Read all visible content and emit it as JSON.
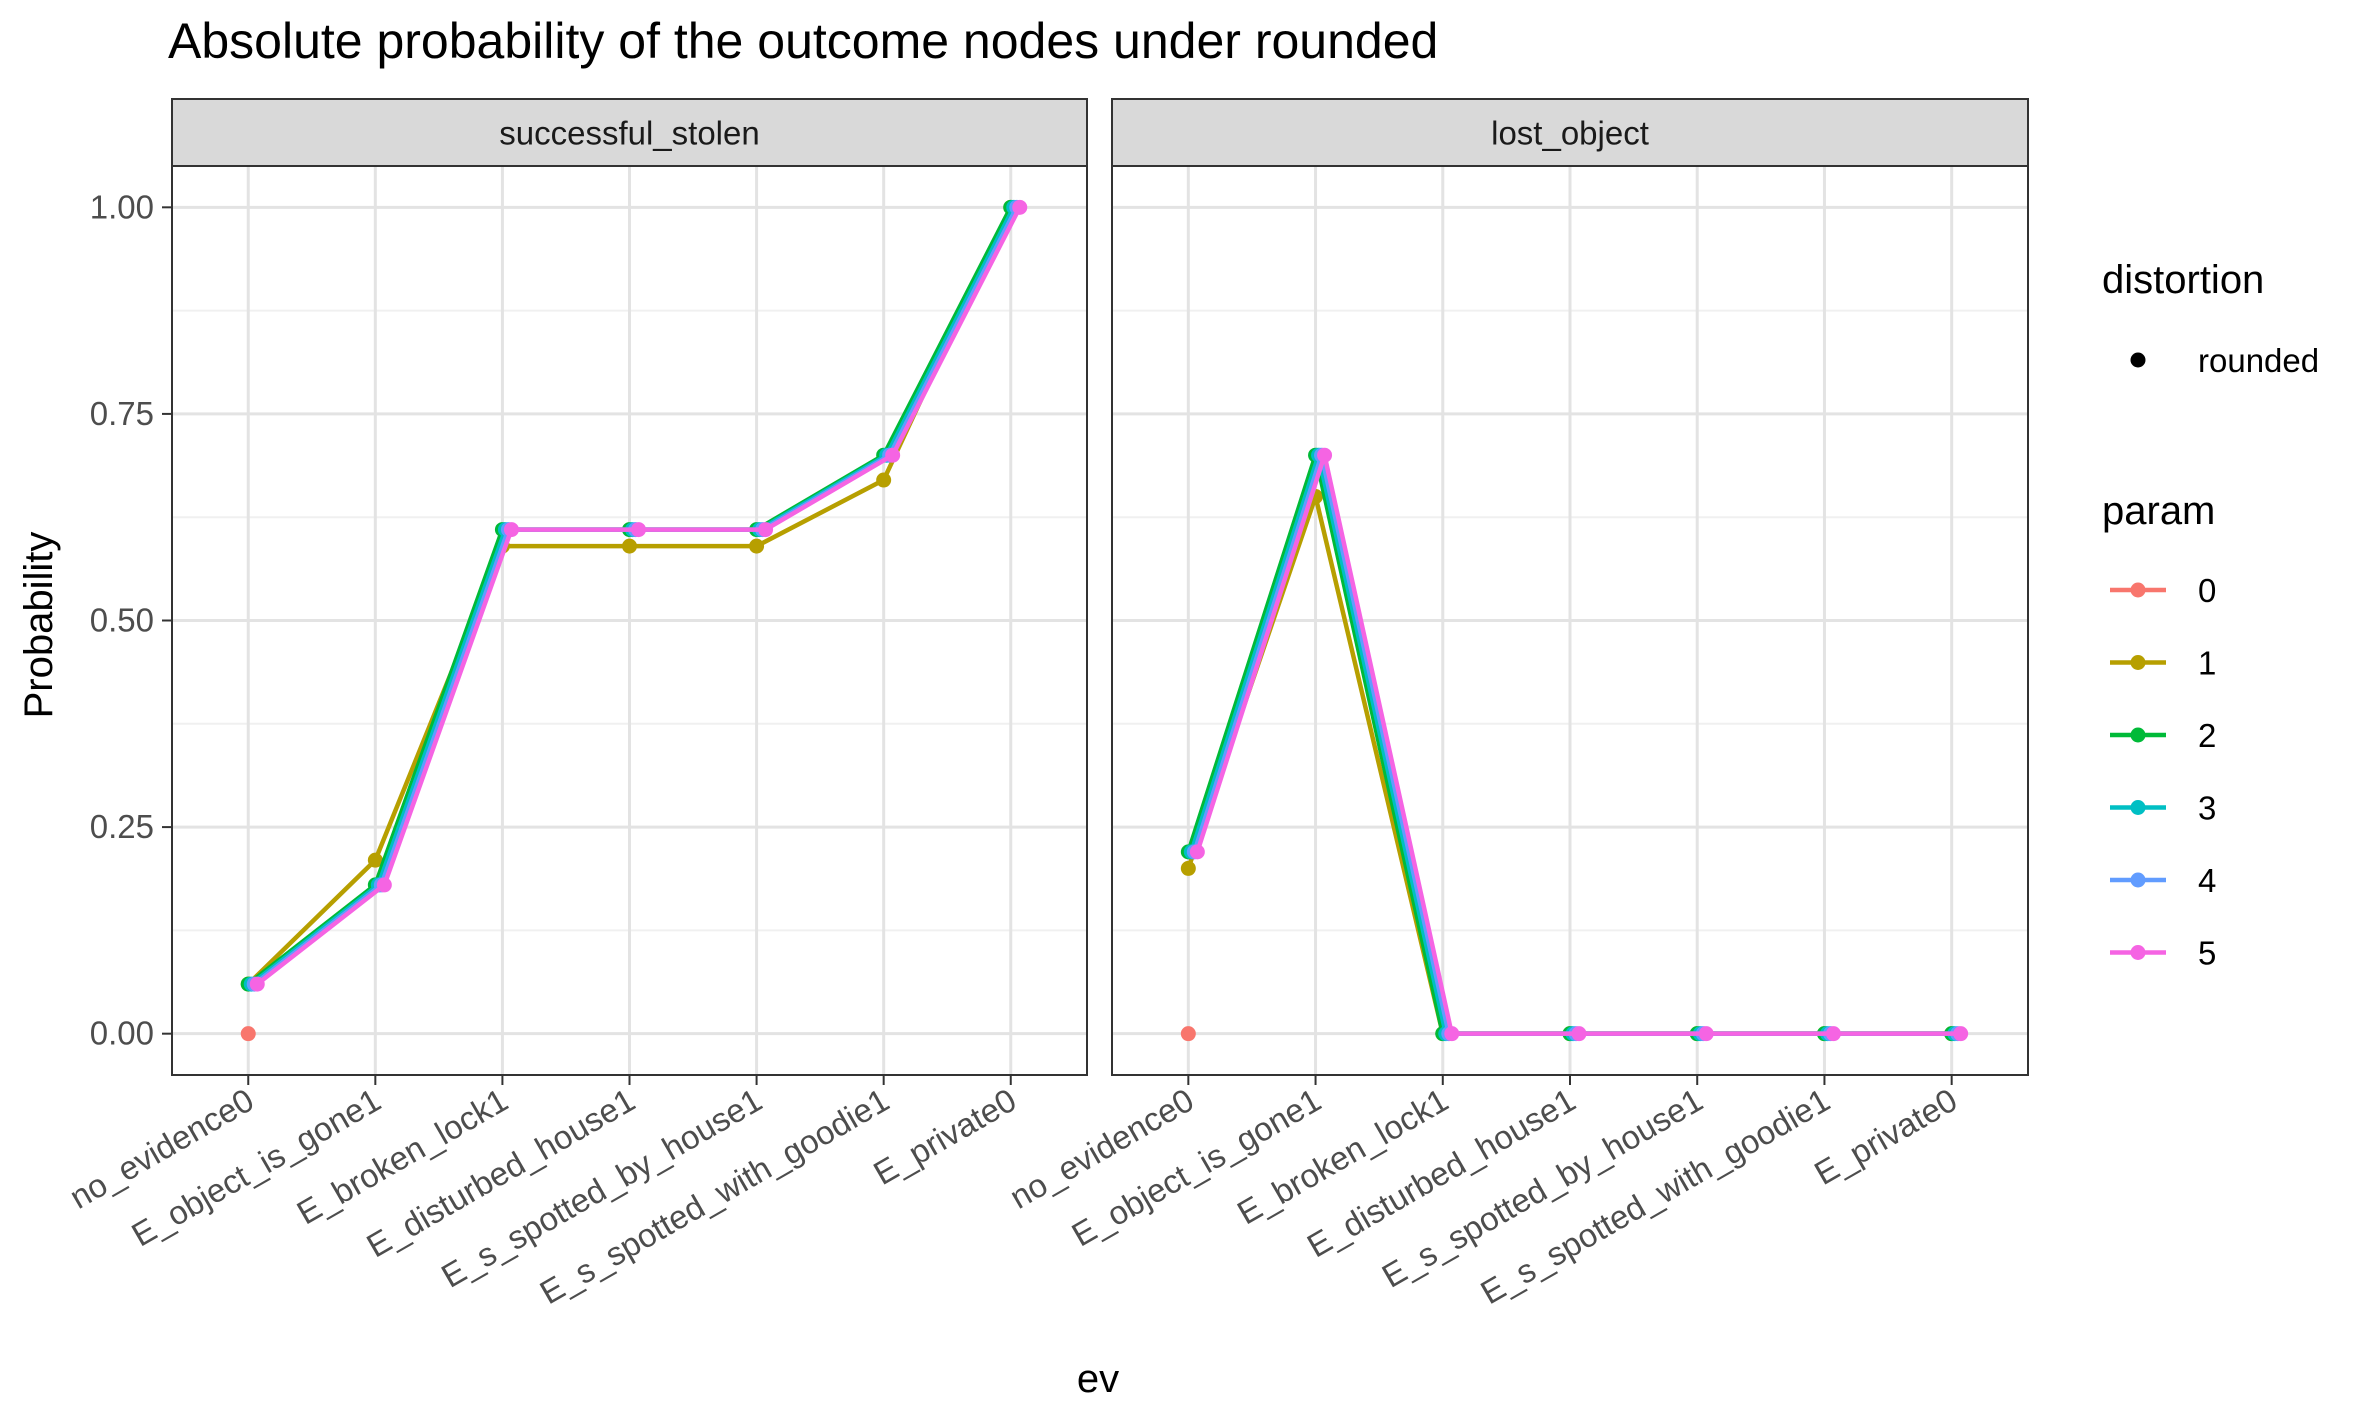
{
  "chart_data": {
    "type": "line",
    "title": "Absolute probability of the outcome nodes under rounded",
    "xlabel": "ev",
    "ylabel": "Probability",
    "ylim": [
      -0.05,
      1.05
    ],
    "y_ticks": [
      "0.00",
      "0.25",
      "0.50",
      "0.75",
      "1.00"
    ],
    "y_tick_values": [
      0,
      0.25,
      0.5,
      0.75,
      1.0
    ],
    "categories": [
      "no_evidence0",
      "E_object_is_gone1",
      "E_broken_lock1",
      "E_disturbed_house1",
      "E_s_spotted_by_house1",
      "E_s_spotted_with_goodie1",
      "E_private0"
    ],
    "grid": true,
    "legend_placement": "right",
    "legends": [
      {
        "title": "distortion",
        "entries": [
          {
            "label": "rounded"
          }
        ]
      },
      {
        "title": "param",
        "entries": [
          {
            "label": "0",
            "color": "#F8766D"
          },
          {
            "label": "1",
            "color": "#B79F00"
          },
          {
            "label": "2",
            "color": "#00BA38"
          },
          {
            "label": "3",
            "color": "#00BFC4"
          },
          {
            "label": "4",
            "color": "#619CFF"
          },
          {
            "label": "5",
            "color": "#F564E3"
          }
        ]
      }
    ],
    "panels": [
      {
        "strip": "successful_stolen",
        "series": [
          {
            "param": "0",
            "color": "#F8766D",
            "values": [
              0.0,
              null,
              null,
              null,
              null,
              null,
              null
            ]
          },
          {
            "param": "1",
            "color": "#B79F00",
            "values": [
              0.06,
              0.21,
              0.59,
              0.59,
              0.59,
              0.67,
              1.0
            ]
          },
          {
            "param": "2",
            "color": "#00BA38",
            "values": [
              0.06,
              0.18,
              0.61,
              0.61,
              0.61,
              0.7,
              1.0
            ]
          },
          {
            "param": "3",
            "color": "#00BFC4",
            "values": [
              0.06,
              0.18,
              0.61,
              0.61,
              0.61,
              0.7,
              1.0
            ]
          },
          {
            "param": "4",
            "color": "#619CFF",
            "values": [
              0.06,
              0.18,
              0.61,
              0.61,
              0.61,
              0.7,
              1.0
            ]
          },
          {
            "param": "5",
            "color": "#F564E3",
            "values": [
              0.06,
              0.18,
              0.61,
              0.61,
              0.61,
              0.7,
              1.0
            ]
          }
        ]
      },
      {
        "strip": "lost_object",
        "series": [
          {
            "param": "0",
            "color": "#F8766D",
            "values": [
              0.0,
              null,
              null,
              null,
              null,
              null,
              null
            ]
          },
          {
            "param": "1",
            "color": "#B79F00",
            "values": [
              0.2,
              0.65,
              0.0,
              0.0,
              0.0,
              0.0,
              0.0
            ]
          },
          {
            "param": "2",
            "color": "#00BA38",
            "values": [
              0.22,
              0.7,
              0.0,
              0.0,
              0.0,
              0.0,
              0.0
            ]
          },
          {
            "param": "3",
            "color": "#00BFC4",
            "values": [
              0.22,
              0.7,
              0.0,
              0.0,
              0.0,
              0.0,
              0.0
            ]
          },
          {
            "param": "4",
            "color": "#619CFF",
            "values": [
              0.22,
              0.7,
              0.0,
              0.0,
              0.0,
              0.0,
              0.0
            ]
          },
          {
            "param": "5",
            "color": "#F564E3",
            "values": [
              0.22,
              0.7,
              0.0,
              0.0,
              0.0,
              0.0,
              0.0
            ]
          }
        ]
      }
    ]
  }
}
